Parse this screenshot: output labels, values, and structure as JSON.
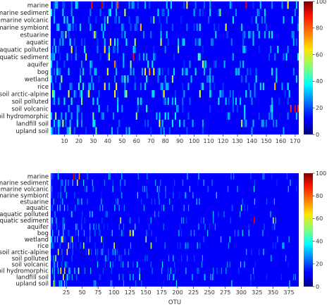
{
  "chart_data": [
    {
      "type": "heatmap",
      "categories": [
        "marine",
        "marine sediment",
        "marine volcanic",
        "marine symbiont",
        "estuarine",
        "aquatic",
        "aquatic polluted",
        "aquatic sediment",
        "aquifer",
        "bog",
        "wetland",
        "rice",
        "soil arctic-alpine",
        "soil polluted",
        "soil volcanic",
        "soil hydromorphic",
        "landfill soil",
        "upland soil"
      ],
      "xlabel": "",
      "x_ticks": [
        10,
        20,
        30,
        40,
        50,
        60,
        70,
        80,
        90,
        100,
        110,
        120,
        130,
        140,
        150,
        160,
        170
      ],
      "x_range": [
        1,
        172
      ],
      "colorbar": {
        "min": 0,
        "max": 100,
        "ticks": [
          0,
          20,
          40,
          60,
          80,
          100
        ],
        "colormap": "jet"
      },
      "background_value": 0,
      "cells": [
        {
          "row": "marine",
          "otu": 29,
          "value": 85
        },
        {
          "row": "marine",
          "otu": 36,
          "value": 92
        },
        {
          "row": "marine",
          "otu": 47,
          "value": 78
        },
        {
          "row": "marine",
          "otu": 95,
          "value": 60
        },
        {
          "row": "marine",
          "otu": 136,
          "value": 88
        },
        {
          "row": "marine",
          "otu": 165,
          "value": 55
        },
        {
          "row": "marine sediment",
          "otu": 52,
          "value": 50
        },
        {
          "row": "marine sediment",
          "otu": 118,
          "value": 40
        },
        {
          "row": "marine volcanic",
          "otu": 40,
          "value": 45
        },
        {
          "row": "marine volcanic",
          "otu": 72,
          "value": 40
        },
        {
          "row": "marine symbiont",
          "otu": 63,
          "value": 65
        },
        {
          "row": "marine symbiont",
          "otu": 122,
          "value": 55
        },
        {
          "row": "estuarine",
          "otu": 11,
          "value": 45
        },
        {
          "row": "estuarine",
          "otu": 31,
          "value": 55
        },
        {
          "row": "estuarine",
          "otu": 154,
          "value": 30
        },
        {
          "row": "aquatic",
          "otu": 42,
          "value": 60
        },
        {
          "row": "aquatic",
          "otu": 45,
          "value": 35
        },
        {
          "row": "aquatic",
          "otu": 59,
          "value": 50
        },
        {
          "row": "aquatic",
          "otu": 77,
          "value": 48
        },
        {
          "row": "aquatic polluted",
          "otu": 15,
          "value": 58
        },
        {
          "row": "aquatic polluted",
          "otu": 38,
          "value": 60
        },
        {
          "row": "aquatic polluted",
          "otu": 89,
          "value": 45
        },
        {
          "row": "aquatic sediment",
          "otu": 25,
          "value": 50
        },
        {
          "row": "aquatic sediment",
          "otu": 41,
          "value": 55
        },
        {
          "row": "aquatic sediment",
          "otu": 58,
          "value": 85
        },
        {
          "row": "aquatic sediment",
          "otu": 103,
          "value": 40
        },
        {
          "row": "aquifer",
          "otu": 45,
          "value": 72
        },
        {
          "row": "aquifer",
          "otu": 56,
          "value": 45
        },
        {
          "row": "aquifer",
          "otu": 106,
          "value": 48
        },
        {
          "row": "bog",
          "otu": 40,
          "value": 55
        },
        {
          "row": "bog",
          "otu": 66,
          "value": 60
        },
        {
          "row": "bog",
          "otu": 69,
          "value": 70
        },
        {
          "row": "bog",
          "otu": 72,
          "value": 55
        },
        {
          "row": "wetland",
          "otu": 8,
          "value": 45
        },
        {
          "row": "wetland",
          "otu": 52,
          "value": 40
        },
        {
          "row": "wetland",
          "otu": 85,
          "value": 45
        },
        {
          "row": "rice",
          "otu": 20,
          "value": 35
        },
        {
          "row": "rice",
          "otu": 38,
          "value": 55
        },
        {
          "row": "rice",
          "otu": 46,
          "value": 58
        },
        {
          "row": "rice",
          "otu": 156,
          "value": 65
        },
        {
          "row": "soil arctic-alpine",
          "otu": 2,
          "value": 48
        },
        {
          "row": "soil arctic-alpine",
          "otu": 13,
          "value": 55
        },
        {
          "row": "soil arctic-alpine",
          "otu": 27,
          "value": 58
        },
        {
          "row": "soil arctic-alpine",
          "otu": 45,
          "value": 55
        },
        {
          "row": "soil arctic-alpine",
          "otu": 53,
          "value": 50
        },
        {
          "row": "soil arctic-alpine",
          "otu": 79,
          "value": 58
        },
        {
          "row": "soil arctic-alpine",
          "otu": 104,
          "value": 55
        },
        {
          "row": "soil polluted",
          "otu": 22,
          "value": 40
        },
        {
          "row": "soil polluted",
          "otu": 61,
          "value": 30
        },
        {
          "row": "soil volcanic",
          "otu": 167,
          "value": 80
        },
        {
          "row": "soil volcanic",
          "otu": 170,
          "value": 88
        },
        {
          "row": "soil volcanic",
          "otu": 172,
          "value": 82
        },
        {
          "row": "soil hydromorphic",
          "otu": 4,
          "value": 50
        },
        {
          "row": "soil hydromorphic",
          "otu": 30,
          "value": 40
        },
        {
          "row": "soil hydromorphic",
          "otu": 60,
          "value": 45
        },
        {
          "row": "landfill soil",
          "otu": 9,
          "value": 50
        },
        {
          "row": "landfill soil",
          "otu": 76,
          "value": 55
        },
        {
          "row": "landfill soil",
          "otu": 133,
          "value": 48
        },
        {
          "row": "upland soil",
          "otu": 14,
          "value": 45
        },
        {
          "row": "upland soil",
          "otu": 32,
          "value": 40
        }
      ]
    },
    {
      "type": "heatmap",
      "categories": [
        "marine",
        "marine sediment",
        "marine volcanic",
        "marine symbiont",
        "estuarine",
        "aquatic",
        "aquatic polluted",
        "aquatic sediment",
        "aquifer",
        "bog",
        "wetland",
        "rice",
        "soil arctic-alpine",
        "soil polluted",
        "soil volcanic",
        "soil hydromorphic",
        "landfill soil",
        "upland soil"
      ],
      "xlabel": "OTU",
      "x_ticks": [
        25,
        50,
        75,
        100,
        125,
        150,
        175,
        200,
        225,
        250,
        275,
        300,
        325,
        350,
        375
      ],
      "x_range": [
        1,
        390
      ],
      "colorbar": {
        "min": 0,
        "max": 100,
        "ticks": [
          0,
          20,
          40,
          60,
          80,
          100
        ],
        "colormap": "jet"
      },
      "background_value": 0,
      "cells": [
        {
          "row": "marine",
          "otu": 36,
          "value": 88
        },
        {
          "row": "marine",
          "otu": 45,
          "value": 70
        },
        {
          "row": "marine sediment",
          "otu": 42,
          "value": 55
        },
        {
          "row": "aquatic",
          "otu": 300,
          "value": 38
        },
        {
          "row": "aquatic sediment",
          "otu": 110,
          "value": 60
        },
        {
          "row": "aquatic sediment",
          "otu": 320,
          "value": 85
        },
        {
          "row": "aquatic sediment",
          "otu": 350,
          "value": 55
        },
        {
          "row": "bog",
          "otu": 125,
          "value": 58
        },
        {
          "row": "bog",
          "otu": 130,
          "value": 55
        },
        {
          "row": "wetland",
          "otu": 18,
          "value": 60
        },
        {
          "row": "wetland",
          "otu": 34,
          "value": 55
        },
        {
          "row": "wetland",
          "otu": 80,
          "value": 50
        },
        {
          "row": "wetland",
          "otu": 150,
          "value": 48
        },
        {
          "row": "rice",
          "otu": 28,
          "value": 62
        },
        {
          "row": "rice",
          "otu": 52,
          "value": 45
        },
        {
          "row": "rice",
          "otu": 100,
          "value": 55
        },
        {
          "row": "rice",
          "otu": 158,
          "value": 50
        },
        {
          "row": "soil arctic-alpine",
          "otu": 12,
          "value": 55
        },
        {
          "row": "soil arctic-alpine",
          "otu": 26,
          "value": 60
        },
        {
          "row": "soil arctic-alpine",
          "otu": 60,
          "value": 58
        },
        {
          "row": "soil polluted",
          "otu": 8,
          "value": 50
        },
        {
          "row": "soil hydromorphic",
          "otu": 16,
          "value": 58
        },
        {
          "row": "soil hydromorphic",
          "otu": 22,
          "value": 62
        },
        {
          "row": "soil hydromorphic",
          "otu": 44,
          "value": 50
        },
        {
          "row": "landfill soil",
          "otu": 20,
          "value": 55
        },
        {
          "row": "landfill soil",
          "otu": 140,
          "value": 40
        },
        {
          "row": "upland soil",
          "otu": 5,
          "value": 50
        }
      ]
    }
  ]
}
